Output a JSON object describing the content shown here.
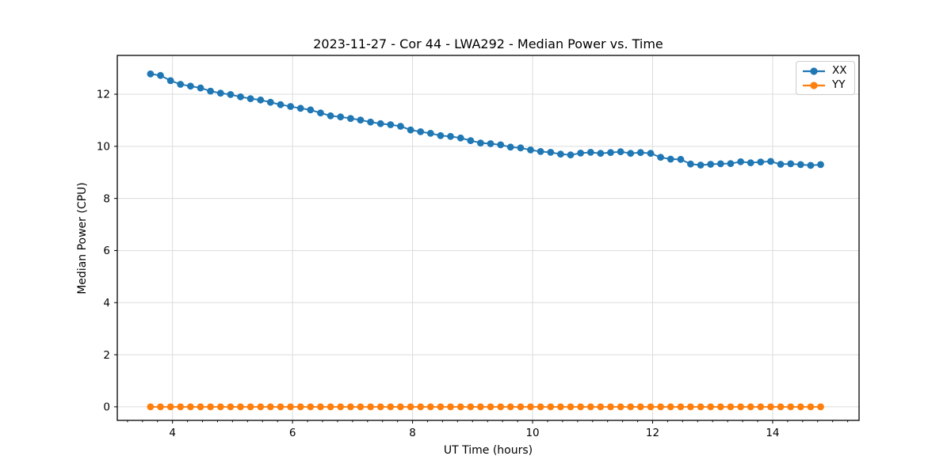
{
  "figure": {
    "background": "#ffffff",
    "text_color": "#000000",
    "grid_color": "#dcdcdc",
    "spine_color": "#000000"
  },
  "chart_data": {
    "type": "line",
    "title": "2023-11-27 - Cor 44 - LWA292 - Median Power vs. Time",
    "xlabel": "UT Time (hours)",
    "ylabel": "Median Power (CPU)",
    "xlim": [
      3.08,
      15.44
    ],
    "ylim": [
      -0.52,
      13.49
    ],
    "xticks": [
      4,
      6,
      8,
      10,
      12,
      14
    ],
    "yticks": [
      0,
      2,
      4,
      6,
      8,
      10,
      12
    ],
    "x_minor_step": 0.25,
    "grid": true,
    "legend_position": "upper right",
    "x": [
      3.633,
      3.8,
      3.967,
      4.133,
      4.3,
      4.467,
      4.633,
      4.8,
      4.967,
      5.133,
      5.3,
      5.467,
      5.633,
      5.8,
      5.967,
      6.133,
      6.3,
      6.467,
      6.633,
      6.8,
      6.967,
      7.133,
      7.3,
      7.467,
      7.633,
      7.8,
      7.967,
      8.133,
      8.3,
      8.467,
      8.633,
      8.8,
      8.967,
      9.133,
      9.3,
      9.467,
      9.633,
      9.8,
      9.967,
      10.133,
      10.3,
      10.467,
      10.633,
      10.8,
      10.967,
      11.133,
      11.3,
      11.467,
      11.633,
      11.8,
      11.967,
      12.133,
      12.3,
      12.467,
      12.633,
      12.8,
      12.967,
      13.133,
      13.3,
      13.467,
      13.633,
      13.8,
      13.967,
      14.133,
      14.3,
      14.467,
      14.633,
      14.8
    ],
    "series": [
      {
        "name": "XX",
        "color": "#1f77b4",
        "values": [
          12.78,
          12.72,
          12.52,
          12.38,
          12.31,
          12.24,
          12.12,
          12.04,
          11.99,
          11.9,
          11.83,
          11.78,
          11.69,
          11.6,
          11.53,
          11.46,
          11.4,
          11.28,
          11.17,
          11.13,
          11.07,
          11.01,
          10.93,
          10.87,
          10.83,
          10.77,
          10.63,
          10.56,
          10.5,
          10.41,
          10.38,
          10.32,
          10.22,
          10.13,
          10.1,
          10.06,
          9.97,
          9.94,
          9.86,
          9.8,
          9.77,
          9.7,
          9.67,
          9.74,
          9.77,
          9.73,
          9.76,
          9.79,
          9.73,
          9.76,
          9.73,
          9.58,
          9.51,
          9.5,
          9.32,
          9.28,
          9.31,
          9.33,
          9.34,
          9.41,
          9.37,
          9.4,
          9.42,
          9.31,
          9.33,
          9.3,
          9.27,
          9.3
        ]
      },
      {
        "name": "YY",
        "color": "#ff7f0e",
        "values": [
          0,
          0,
          0,
          0,
          0,
          0,
          0,
          0,
          0,
          0,
          0,
          0,
          0,
          0,
          0,
          0,
          0,
          0,
          0,
          0,
          0,
          0,
          0,
          0,
          0,
          0,
          0,
          0,
          0,
          0,
          0,
          0,
          0,
          0,
          0,
          0,
          0,
          0,
          0,
          0,
          0,
          0,
          0,
          0,
          0,
          0,
          0,
          0,
          0,
          0,
          0,
          0,
          0,
          0,
          0,
          0,
          0,
          0,
          0,
          0,
          0,
          0,
          0,
          0,
          0,
          0,
          0,
          0
        ]
      }
    ]
  }
}
